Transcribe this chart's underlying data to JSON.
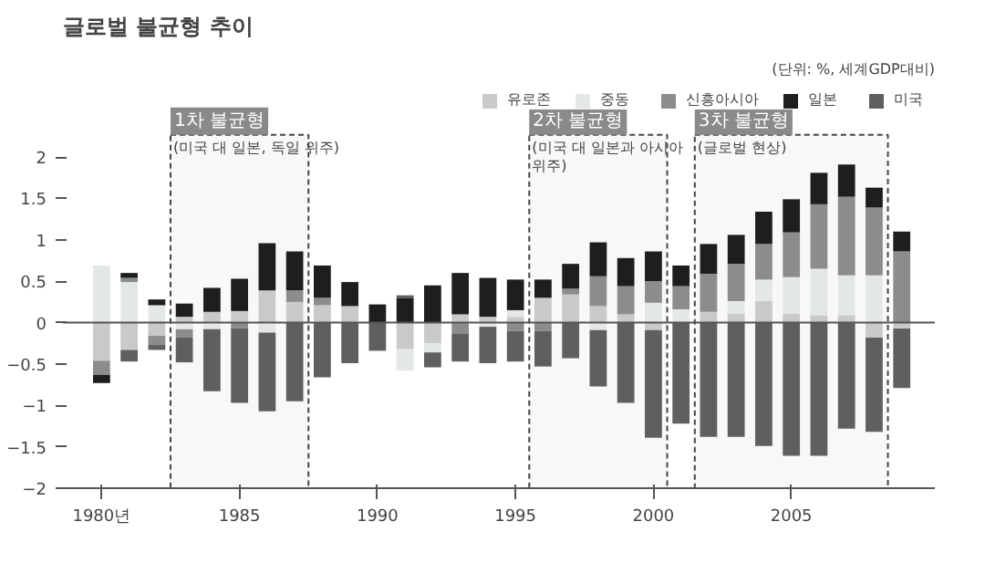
{
  "chart_data": {
    "type": "bar",
    "stacked": true,
    "title": "글로벌 불균형 추이",
    "annotations": [
      "(단위: %, 세계GDP대비)"
    ],
    "x": [
      1980,
      1981,
      1982,
      1983,
      1984,
      1985,
      1986,
      1987,
      1988,
      1989,
      1990,
      1991,
      1992,
      1993,
      1994,
      1995,
      1996,
      1997,
      1998,
      1999,
      2000,
      2001,
      2002,
      2003,
      2004,
      2005,
      2006,
      2007,
      2008,
      2009
    ],
    "xlim": [
      1978.6,
      2010.2
    ],
    "xticks": [
      {
        "value": 1980,
        "label": "1980년"
      },
      1985,
      1990,
      1995,
      2000,
      2005
    ],
    "ylim": [
      -2,
      2.85
    ],
    "yticks": [
      -2,
      -1.5,
      -1,
      -0.5,
      0,
      0.5,
      1,
      1.5,
      2
    ],
    "grid": false,
    "legend": "top right",
    "series": [
      {
        "name": "유로존",
        "color": "#c9c9c9",
        "values": [
          -0.46,
          -0.33,
          -0.16,
          0.07,
          0.13,
          0.14,
          0.39,
          0.25,
          0.21,
          0.2,
          null,
          -0.32,
          -0.25,
          0.1,
          0.07,
          0.07,
          0.3,
          0.34,
          0.2,
          0.1,
          -0.09,
          null,
          0.13,
          0.11,
          0.26,
          0.11,
          0.09,
          0.09,
          -0.18,
          -0.07
        ]
      },
      {
        "name": "중동",
        "color": "#e4e7e7",
        "values": [
          0.69,
          0.49,
          0.21,
          -0.08,
          -0.08,
          null,
          -0.12,
          null,
          null,
          null,
          null,
          -0.26,
          -0.11,
          null,
          -0.05,
          0.08,
          null,
          null,
          -0.09,
          null,
          0.24,
          0.16,
          null,
          0.15,
          0.26,
          0.44,
          0.56,
          0.48,
          0.57,
          null
        ]
      },
      {
        "name": "신흥아시아",
        "color": "#8c8c8c",
        "values": [
          -0.17,
          0.05,
          -0.11,
          -0.1,
          null,
          -0.07,
          null,
          0.14,
          0.09,
          null,
          null,
          null,
          null,
          -0.13,
          null,
          -0.1,
          -0.1,
          0.07,
          0.36,
          0.34,
          0.26,
          0.28,
          0.46,
          0.45,
          0.43,
          0.54,
          0.78,
          0.95,
          0.82,
          0.86
        ]
      },
      {
        "name": "일본",
        "color": "#1e1e1e",
        "values": [
          -0.1,
          0.06,
          0.07,
          0.16,
          0.29,
          0.39,
          0.57,
          0.47,
          0.39,
          0.29,
          0.22,
          0.3,
          0.45,
          0.5,
          0.47,
          0.37,
          0.22,
          0.3,
          0.41,
          0.34,
          0.36,
          0.25,
          0.36,
          0.35,
          0.39,
          0.4,
          0.38,
          0.39,
          0.24,
          0.24
        ]
      },
      {
        "name": "미국",
        "color": "#5f5f5f",
        "values": [
          null,
          -0.14,
          -0.06,
          -0.3,
          -0.75,
          -0.9,
          -0.95,
          -0.95,
          -0.66,
          -0.49,
          -0.34,
          0.03,
          -0.18,
          -0.34,
          -0.44,
          -0.37,
          -0.43,
          -0.43,
          -0.68,
          -0.97,
          -1.3,
          -1.22,
          -1.38,
          -1.38,
          -1.49,
          -1.61,
          -1.61,
          -1.28,
          -1.14,
          -0.72
        ]
      }
    ],
    "ref_lines": [
      {
        "axis": "y",
        "value": 0,
        "color": "#555555"
      }
    ],
    "bands": [
      {
        "axis": "x",
        "from": 1982.5,
        "to": 1987.5,
        "label": "1차 불균형\n(미국 대 일본, 독일 위주)",
        "color": "#8a8a8a"
      },
      {
        "axis": "x",
        "from": 1995.5,
        "to": 2000.5,
        "label": "2차 불균형\n(미국 대 일본과 아시아\n위주)",
        "color": "#8a8a8a"
      },
      {
        "axis": "x",
        "from": 2001.5,
        "to": 2008.5,
        "label": "3차 불균형\n(글로벌 현상)",
        "color": "#8a8a8a"
      }
    ]
  }
}
